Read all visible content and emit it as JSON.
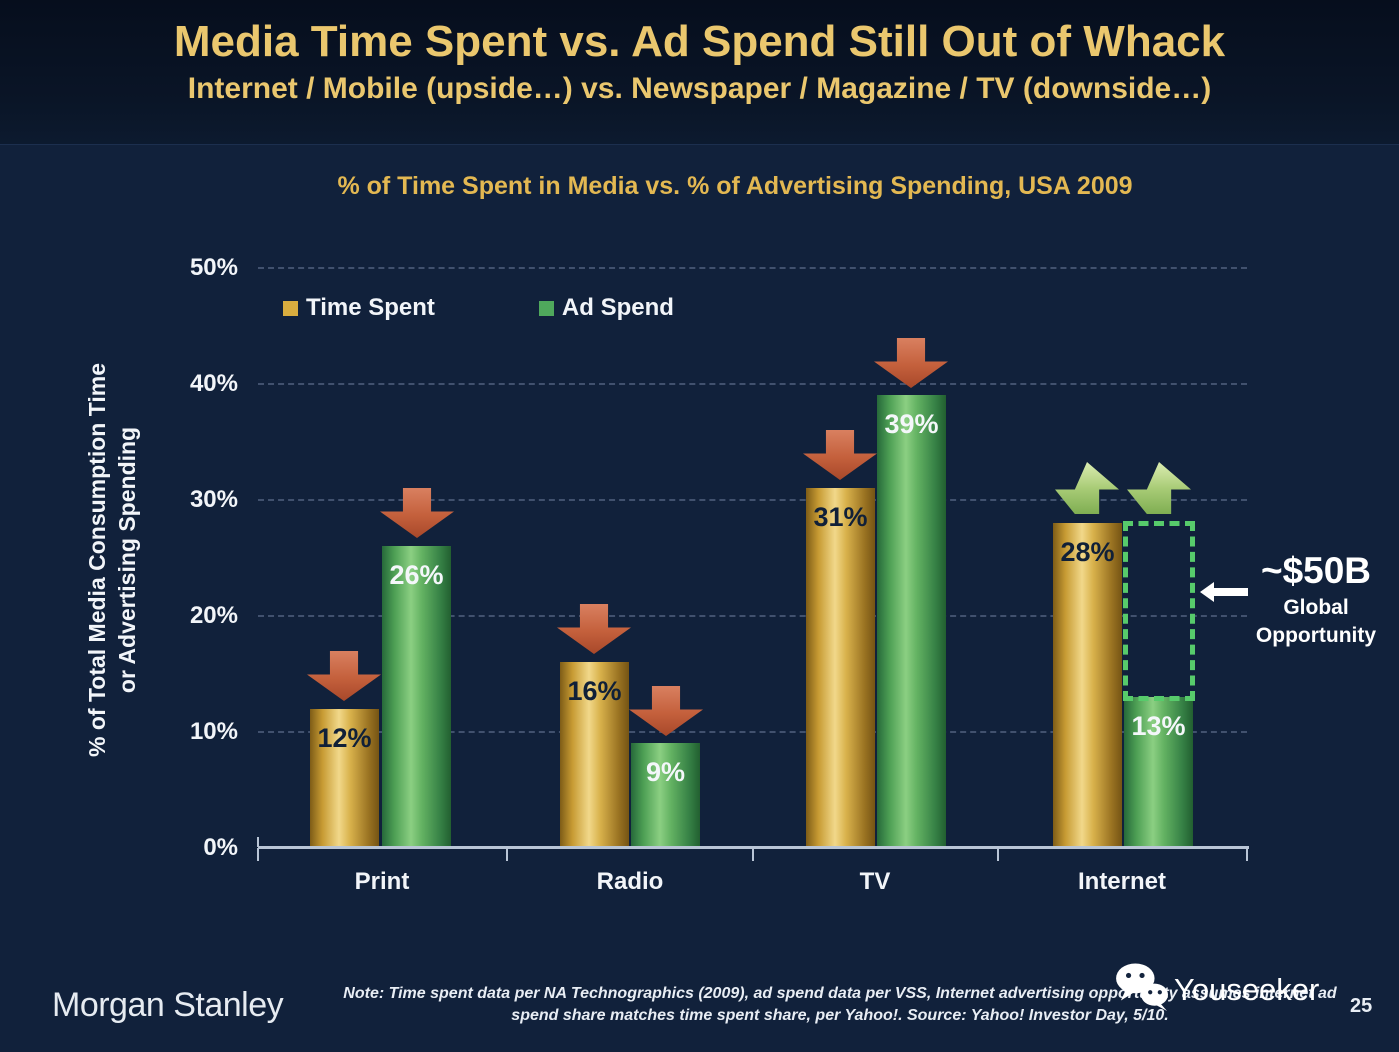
{
  "slide": {
    "title": "Media Time Spent vs. Ad Spend Still Out of Whack",
    "subtitle": "Internet / Mobile (upside…) vs. Newspaper / Magazine / TV (downside…)"
  },
  "chart_data": {
    "type": "bar",
    "title": "% of Time Spent in Media vs. % of Advertising Spending, USA 2009",
    "ylabel_line1": "% of Total Media Consumption Time",
    "ylabel_line2": "or Advertising Spending",
    "categories": [
      "Print",
      "Radio",
      "TV",
      "Internet"
    ],
    "series": [
      {
        "name": "Time Spent",
        "color": "#d9ad3f",
        "values": [
          12,
          16,
          31,
          28
        ],
        "labels": [
          "12%",
          "16%",
          "31%",
          "28%"
        ]
      },
      {
        "name": "Ad Spend",
        "color": "#4fa85c",
        "values": [
          26,
          9,
          39,
          13
        ],
        "labels": [
          "26%",
          "9%",
          "39%",
          "13%"
        ]
      }
    ],
    "ylim": [
      0,
      50
    ],
    "ytick_labels": [
      "50%",
      "40%",
      "30%",
      "20%",
      "10%",
      "0%"
    ],
    "grid": "horizontal-dashed",
    "legend_position": "top-left-inside",
    "trend_arrows": {
      "down": [
        "Print: Time Spent",
        "Print: Ad Spend",
        "Radio: Time Spent",
        "Radio: Ad Spend",
        "TV: Time Spent",
        "TV: Ad Spend"
      ],
      "up": [
        "Internet: Time Spent",
        "Internet: Ad Spend"
      ]
    },
    "annotation": {
      "value": "~$50B",
      "line1": "Global",
      "line2": "Opportunity"
    }
  },
  "footer": {
    "brand": "Morgan Stanley",
    "note_line1": "Note: Time spent data per NA Technographics (2009), ad spend data per VSS, Internet advertising opportunity assumes internet ad",
    "note_line2": "spend share matches time spent share, per Yahoo!. Source: Yahoo! Investor Day, 5/10.",
    "watermark": "Youseeker",
    "page_number": "25"
  },
  "colors": {
    "background": "#11213b",
    "header_background": "#0a1527",
    "title_gold": "#eac76e",
    "chart_title_gold": "#e3b852",
    "bar_gold": "#d9ad3f",
    "bar_green": "#4fa85c",
    "down_arrow": "#c2603d",
    "up_arrow": "#a9cc77",
    "opportunity_green": "#57cb6b",
    "text_white": "#f2f5f9"
  }
}
